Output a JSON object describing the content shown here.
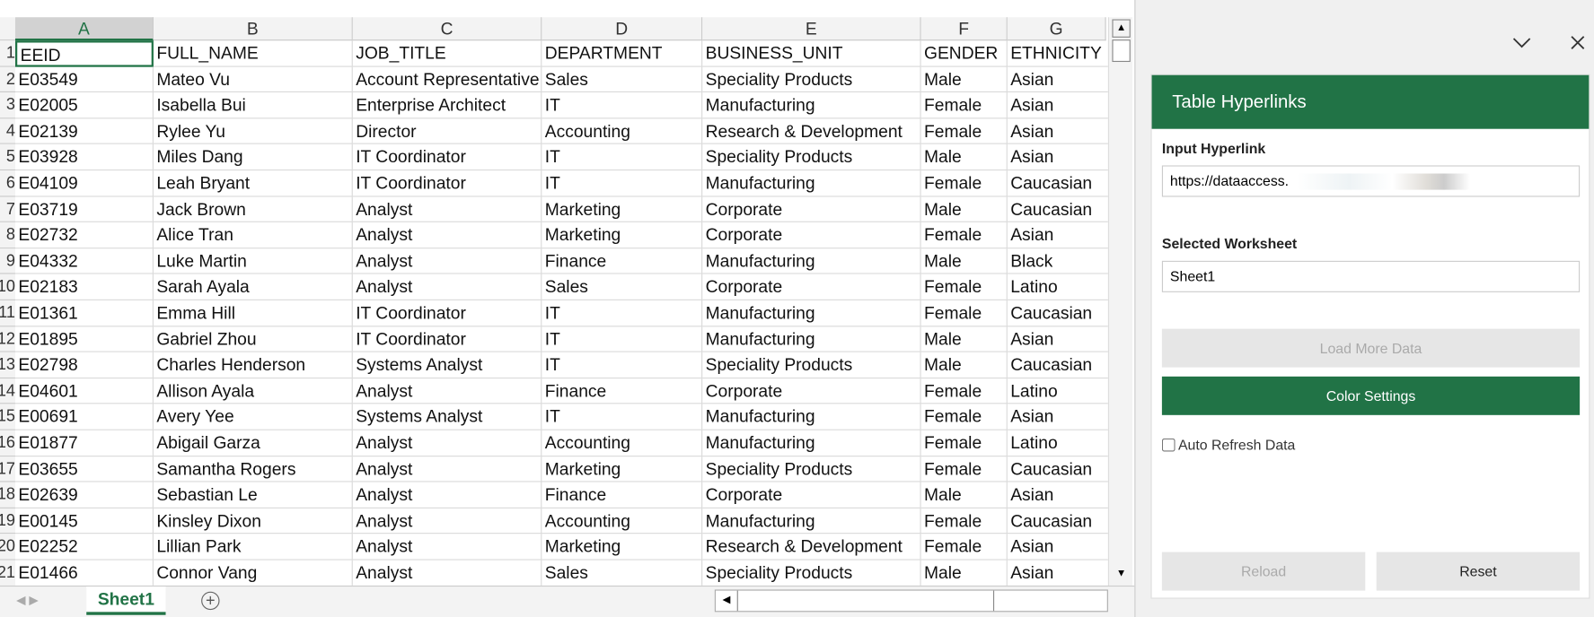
{
  "sheet": {
    "columns": [
      "A",
      "B",
      "C",
      "D",
      "E",
      "F",
      "G"
    ],
    "row_numbers": [
      "1",
      "2",
      "3",
      "4",
      "5",
      "6",
      "7",
      "8",
      "9",
      "10",
      "11",
      "12",
      "13",
      "14",
      "15",
      "16",
      "17",
      "18",
      "19",
      "20",
      "21"
    ],
    "header": [
      "EEID",
      "FULL_NAME",
      "JOB_TITLE",
      "DEPARTMENT",
      "BUSINESS_UNIT",
      "GENDER",
      "ETHNICITY"
    ],
    "rows": [
      [
        "E03549",
        "Mateo Vu",
        "Account Representative",
        "Sales",
        "Speciality Products",
        "Male",
        "Asian"
      ],
      [
        "E02005",
        "Isabella Bui",
        "Enterprise Architect",
        "IT",
        "Manufacturing",
        "Female",
        "Asian"
      ],
      [
        "E02139",
        "Rylee Yu",
        "Director",
        "Accounting",
        "Research & Development",
        "Female",
        "Asian"
      ],
      [
        "E03928",
        "Miles Dang",
        "IT Coordinator",
        "IT",
        "Speciality Products",
        "Male",
        "Asian"
      ],
      [
        "E04109",
        "Leah Bryant",
        "IT Coordinator",
        "IT",
        "Manufacturing",
        "Female",
        "Caucasian"
      ],
      [
        "E03719",
        "Jack Brown",
        "Analyst",
        "Marketing",
        "Corporate",
        "Male",
        "Caucasian"
      ],
      [
        "E02732",
        "Alice Tran",
        "Analyst",
        "Marketing",
        "Corporate",
        "Female",
        "Asian"
      ],
      [
        "E04332",
        "Luke Martin",
        "Analyst",
        "Finance",
        "Manufacturing",
        "Male",
        "Black"
      ],
      [
        "E02183",
        "Sarah Ayala",
        "Analyst",
        "Sales",
        "Corporate",
        "Female",
        "Latino"
      ],
      [
        "E01361",
        "Emma Hill",
        "IT Coordinator",
        "IT",
        "Manufacturing",
        "Female",
        "Caucasian"
      ],
      [
        "E01895",
        "Gabriel Zhou",
        "IT Coordinator",
        "IT",
        "Manufacturing",
        "Male",
        "Asian"
      ],
      [
        "E02798",
        "Charles Henderson",
        "Systems Analyst",
        "IT",
        "Speciality Products",
        "Male",
        "Caucasian"
      ],
      [
        "E04601",
        "Allison Ayala",
        "Analyst",
        "Finance",
        "Corporate",
        "Female",
        "Latino"
      ],
      [
        "E00691",
        "Avery Yee",
        "Systems Analyst",
        "IT",
        "Manufacturing",
        "Female",
        "Asian"
      ],
      [
        "E01877",
        "Abigail Garza",
        "Analyst",
        "Accounting",
        "Manufacturing",
        "Female",
        "Latino"
      ],
      [
        "E03655",
        "Samantha Rogers",
        "Analyst",
        "Marketing",
        "Speciality Products",
        "Female",
        "Caucasian"
      ],
      [
        "E02639",
        "Sebastian Le",
        "Analyst",
        "Finance",
        "Corporate",
        "Male",
        "Asian"
      ],
      [
        "E00145",
        "Kinsley Dixon",
        "Analyst",
        "Accounting",
        "Manufacturing",
        "Female",
        "Caucasian"
      ],
      [
        "E02252",
        "Lillian Park",
        "Analyst",
        "Marketing",
        "Research & Development",
        "Female",
        "Asian"
      ],
      [
        "E01466",
        "Connor Vang",
        "Analyst",
        "Sales",
        "Speciality Products",
        "Male",
        "Asian"
      ]
    ],
    "tab": "Sheet1"
  },
  "panel": {
    "title": "Table Hyperlinks",
    "input_label": "Input Hyperlink",
    "input_value": "https://dataaccess.",
    "worksheet_label": "Selected Worksheet",
    "worksheet_value": "Sheet1",
    "load_button": "Load More Data",
    "color_button": "Color Settings",
    "checkbox_label": "Auto Refresh Data",
    "reload_button": "Reload",
    "reset_button": "Reset"
  }
}
